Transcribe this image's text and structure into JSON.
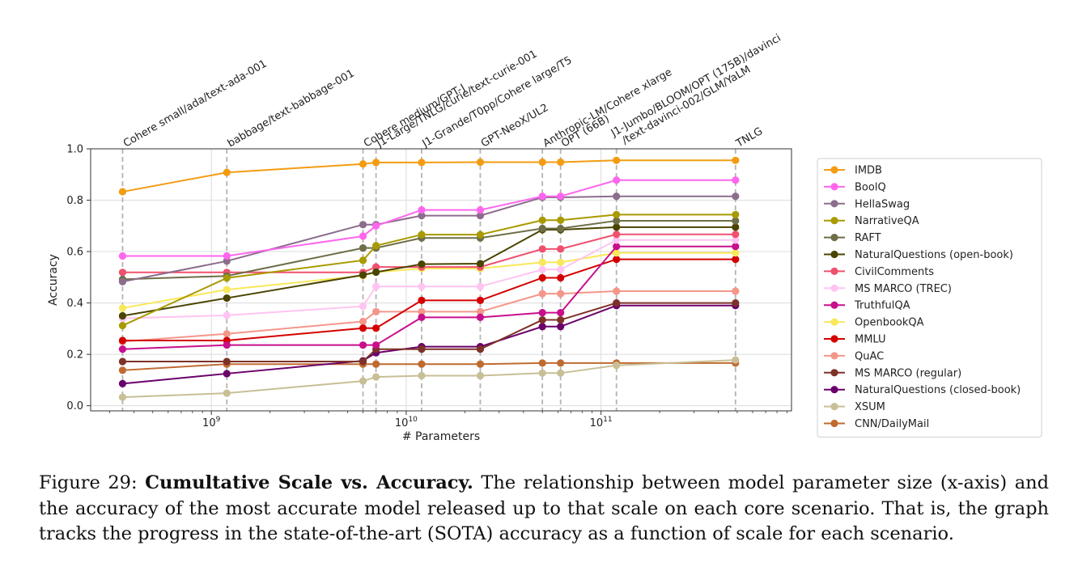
{
  "figure": {
    "caption_label": "Figure 29:",
    "caption_title": "Cumultative Scale vs.  Accuracy.",
    "caption_text": "The relationship between model parameter size (x-axis) and the accuracy of the most accurate model released up to that scale on each core scenario. That is, the graph tracks the progress in the state-of-the-art (SOTA) accuracy as a function of scale for each scenario."
  },
  "chart_data": {
    "type": "line",
    "xlabel": "# Parameters",
    "ylabel": "Accuracy",
    "xscale": "log",
    "xlim": [
      240000000.0,
      950000000000.0
    ],
    "ylim": [
      -0.02,
      1.0
    ],
    "xticks": [
      {
        "value": 1000000000.0,
        "base": "10",
        "exp": "9"
      },
      {
        "value": 10000000000.0,
        "base": "10",
        "exp": "10"
      },
      {
        "value": 100000000000.0,
        "base": "10",
        "exp": "11"
      }
    ],
    "yticks": [
      {
        "value": 0.0,
        "label": "0.0"
      },
      {
        "value": 0.2,
        "label": "0.2"
      },
      {
        "value": 0.4,
        "label": "0.4"
      },
      {
        "value": 0.6,
        "label": "0.6"
      },
      {
        "value": 0.8,
        "label": "0.8"
      },
      {
        "value": 1.0,
        "label": "1.0"
      }
    ],
    "grid": true,
    "legend_position": "right",
    "model_groups": [
      {
        "params": 350000000.0,
        "label": "Cohere small/ada/text-ada-001"
      },
      {
        "params": 1200000000.0,
        "label": "babbage/text-babbage-001"
      },
      {
        "params": 6000000000.0,
        "label": "Cohere medium/GPT-J"
      },
      {
        "params": 7000000000.0,
        "label": "J1-Large/TNLG/curie/text-curie-001"
      },
      {
        "params": 12000000000.0,
        "label": "J1-Grande/T0pp/Cohere large/T5"
      },
      {
        "params": 24000000000.0,
        "label": "GPT-NeoX/UL2"
      },
      {
        "params": 50000000000.0,
        "label": "Anthropic-LM/Cohere xlarge"
      },
      {
        "params": 62000000000.0,
        "label": "OPT (66B)"
      },
      {
        "params": 120000000000.0,
        "label": "J1-Jumbo/BLOOM/OPT (175B)/davinci\n/text-davinci-002/GLM/YaLM"
      },
      {
        "params": 490000000000.0,
        "label": "TNLG"
      }
    ],
    "x": [
      350000000.0,
      1200000000.0,
      6000000000.0,
      7000000000.0,
      12000000000.0,
      24000000000.0,
      50000000000.0,
      62000000000.0,
      120000000000.0,
      490000000000.0
    ],
    "series": [
      {
        "name": "IMDB",
        "color": "#f39c12",
        "values": [
          0.833,
          0.908,
          0.941,
          0.947,
          0.947,
          0.948,
          0.948,
          0.948,
          0.955,
          0.955
        ]
      },
      {
        "name": "BoolQ",
        "color": "#ff66ee",
        "values": [
          0.583,
          0.583,
          0.66,
          0.7,
          0.762,
          0.762,
          0.815,
          0.815,
          0.878,
          0.878
        ]
      },
      {
        "name": "HellaSwag",
        "color": "#8c6d8c",
        "values": [
          0.483,
          0.563,
          0.705,
          0.705,
          0.74,
          0.74,
          0.811,
          0.811,
          0.815,
          0.815
        ]
      },
      {
        "name": "NarrativeQA",
        "color": "#a89a00",
        "values": [
          0.312,
          0.497,
          0.566,
          0.623,
          0.666,
          0.666,
          0.722,
          0.722,
          0.744,
          0.744
        ]
      },
      {
        "name": "RAFT",
        "color": "#6e6e48",
        "values": [
          0.492,
          0.505,
          0.614,
          0.614,
          0.653,
          0.653,
          0.69,
          0.69,
          0.72,
          0.72
        ]
      },
      {
        "name": "NaturalQuestions (open-book)",
        "color": "#4a4400",
        "values": [
          0.35,
          0.419,
          0.509,
          0.52,
          0.551,
          0.553,
          0.685,
          0.685,
          0.695,
          0.695
        ]
      },
      {
        "name": "CivilComments",
        "color": "#f0506e",
        "values": [
          0.519,
          0.519,
          0.519,
          0.54,
          0.54,
          0.54,
          0.61,
          0.61,
          0.667,
          0.667
        ]
      },
      {
        "name": "MS MARCO (TREC)",
        "color": "#ffc4f2",
        "values": [
          0.34,
          0.352,
          0.387,
          0.464,
          0.464,
          0.464,
          0.53,
          0.53,
          0.645,
          0.645
        ]
      },
      {
        "name": "TruthfulQA",
        "color": "#c80f8c",
        "values": [
          0.22,
          0.236,
          0.236,
          0.236,
          0.344,
          0.344,
          0.362,
          0.362,
          0.62,
          0.62
        ]
      },
      {
        "name": "OpenbookQA",
        "color": "#f8e85a",
        "values": [
          0.38,
          0.452,
          0.506,
          0.52,
          0.534,
          0.534,
          0.558,
          0.558,
          0.595,
          0.595
        ]
      },
      {
        "name": "MMLU",
        "color": "#d40000",
        "values": [
          0.254,
          0.254,
          0.302,
          0.302,
          0.41,
          0.41,
          0.498,
          0.498,
          0.57,
          0.57
        ]
      },
      {
        "name": "QuAC",
        "color": "#f4968a",
        "values": [
          0.25,
          0.28,
          0.328,
          0.366,
          0.366,
          0.366,
          0.436,
          0.436,
          0.446,
          0.446
        ]
      },
      {
        "name": "MS MARCO (regular)",
        "color": "#7d3228",
        "values": [
          0.172,
          0.172,
          0.172,
          0.22,
          0.22,
          0.22,
          0.334,
          0.334,
          0.4,
          0.4
        ]
      },
      {
        "name": "NaturalQuestions (closed-book)",
        "color": "#6b006b",
        "values": [
          0.086,
          0.125,
          0.175,
          0.206,
          0.23,
          0.23,
          0.308,
          0.308,
          0.39,
          0.39
        ]
      },
      {
        "name": "XSUM",
        "color": "#c8bf96",
        "values": [
          0.033,
          0.049,
          0.096,
          0.112,
          0.117,
          0.117,
          0.127,
          0.127,
          0.157,
          0.178
        ]
      },
      {
        "name": "CNN/DailyMail",
        "color": "#c06a30",
        "values": [
          0.138,
          0.162,
          0.162,
          0.162,
          0.162,
          0.162,
          0.166,
          0.166,
          0.166,
          0.166
        ]
      }
    ]
  }
}
